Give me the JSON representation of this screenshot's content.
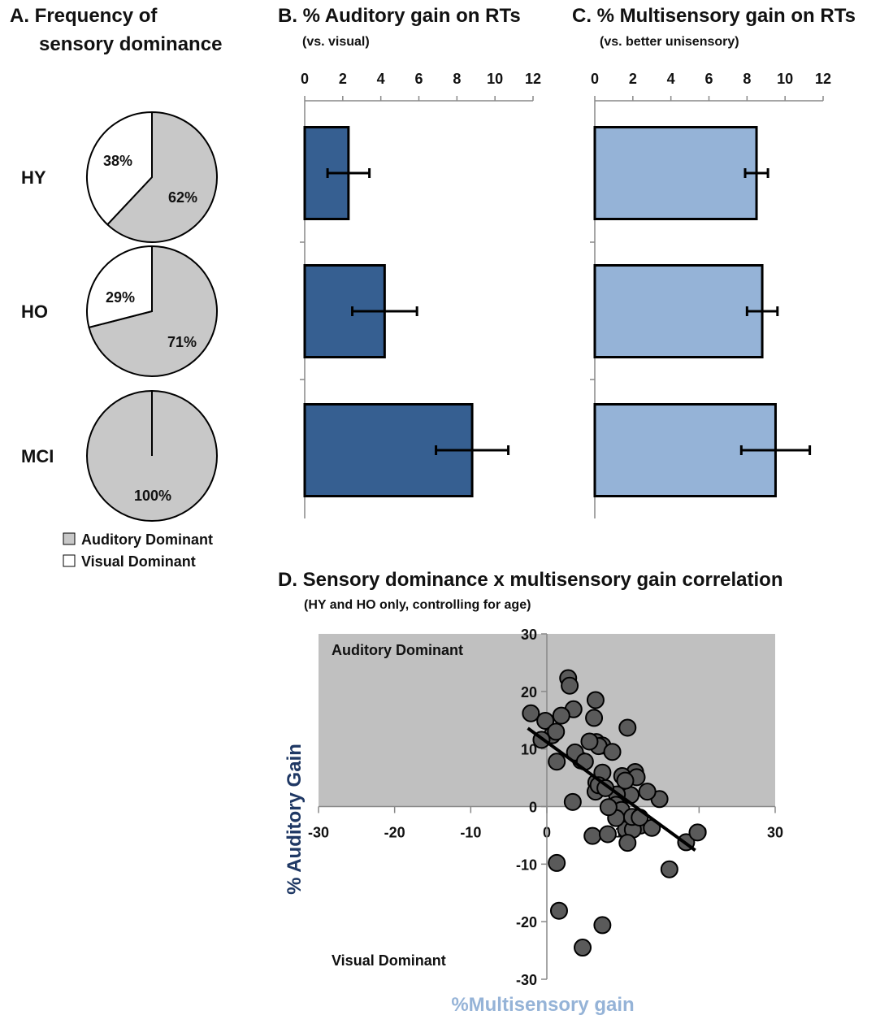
{
  "chart_data": [
    {
      "panel": "A",
      "type": "pie",
      "title": "A. Frequency of",
      "title2": "sensory dominance",
      "legend": [
        "Auditory Dominant",
        "Visual Dominant"
      ],
      "colors": {
        "auditory": "#c8c8c8",
        "visual": "#ffffff"
      },
      "pies": [
        {
          "group": "HY",
          "auditory": 62,
          "visual": 38,
          "auditory_label": "62%",
          "visual_label": "38%"
        },
        {
          "group": "HO",
          "auditory": 71,
          "visual": 29,
          "auditory_label": "71%",
          "visual_label": "29%"
        },
        {
          "group": "MCI",
          "auditory": 100,
          "visual": 0,
          "auditory_label": "100%",
          "visual_label": ""
        }
      ]
    },
    {
      "panel": "B",
      "type": "bar",
      "orientation": "horizontal",
      "title": "B. % Auditory gain on RTs",
      "subtitle": "(vs. visual)",
      "color": "#365f91",
      "xlim": [
        0,
        12
      ],
      "ticks": [
        0,
        2,
        4,
        6,
        8,
        10,
        12
      ],
      "categories": [
        "HY",
        "HO",
        "MCI"
      ],
      "values": [
        2.3,
        4.2,
        8.8
      ],
      "errors": [
        1.1,
        1.7,
        1.9
      ]
    },
    {
      "panel": "C",
      "type": "bar",
      "orientation": "horizontal",
      "title": "C. % Multisensory gain on RTs",
      "subtitle": "(vs. better unisensory)",
      "color": "#95b3d7",
      "xlim": [
        0,
        12
      ],
      "ticks": [
        0,
        2,
        4,
        6,
        8,
        10,
        12
      ],
      "categories": [
        "HY",
        "HO",
        "MCI"
      ],
      "values": [
        8.5,
        8.8,
        9.5
      ],
      "errors": [
        0.6,
        0.8,
        1.8
      ]
    },
    {
      "panel": "D",
      "type": "scatter",
      "title": "D. Sensory dominance x multisensory gain correlation",
      "subtitle": "(HY and HO only, controlling for age)",
      "xlabel": "%Multisensory gain",
      "ylabel": "% Auditory Gain",
      "xlabel_color": "#95b3d7",
      "ylabel_color": "#1f3864",
      "xlim": [
        -30,
        30
      ],
      "ylim": [
        -30,
        30
      ],
      "xticks": [
        -30,
        -20,
        -10,
        0,
        10,
        20,
        30
      ],
      "yticks": [
        30,
        20,
        10,
        0,
        -10,
        -20,
        -30
      ],
      "region_top_label": "Auditory Dominant",
      "region_bottom_label": "Visual Dominant",
      "region_color": "#c0c0c0",
      "point_color": "#5a5a5a",
      "x": [
        2.8,
        3.0,
        3.5,
        6.4,
        10.6,
        -2.1,
        -0.2,
        1.9,
        6.2,
        6.5,
        0.7,
        1.2,
        -0.7,
        1.3,
        7.3,
        4.5,
        6.8,
        5.6,
        8.6,
        3.7,
        5.0,
        6.5,
        7.3,
        11.6,
        9.9,
        11.8,
        14.8,
        11.0,
        13.2,
        9.2,
        6.4,
        6.8,
        10.3,
        9.1,
        9.8,
        1.3,
        6.0,
        8.0,
        10.4,
        12.3,
        11.3,
        13.8,
        9.1,
        18.3,
        10.6,
        19.8,
        16.1,
        1.6,
        7.3,
        4.7,
        3.4,
        7.7,
        8.1,
        11.2,
        12.2
      ],
      "y": [
        22.3,
        21.0,
        16.9,
        18.5,
        13.7,
        16.2,
        14.9,
        15.8,
        15.4,
        11.2,
        12.4,
        13.0,
        11.6,
        7.8,
        10.6,
        8.0,
        10.5,
        11.3,
        9.5,
        9.4,
        7.8,
        4.2,
        5.9,
        6.0,
        5.3,
        5.1,
        1.3,
        2.0,
        2.6,
        2.1,
        2.6,
        3.7,
        4.5,
        0.3,
        -0.6,
        -9.8,
        -5.1,
        -4.8,
        -4.0,
        -3.3,
        -4.0,
        -3.7,
        -2.0,
        -6.2,
        -6.3,
        -4.5,
        -10.9,
        -18.1,
        -20.6,
        -24.5,
        0.8,
        3.2,
        -0.1,
        -1.8,
        -1.9
      ],
      "fit_line": {
        "x": [
          -2.5,
          19.5
        ],
        "y": [
          13.6,
          -7.6
        ]
      }
    }
  ]
}
